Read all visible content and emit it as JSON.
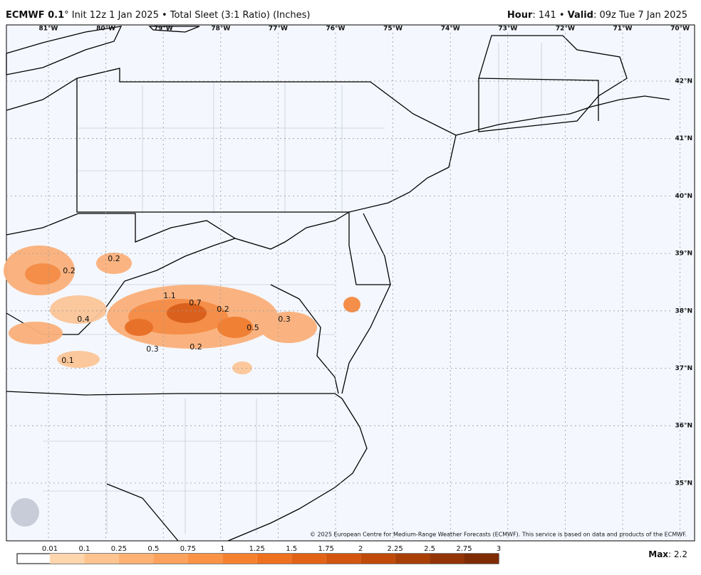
{
  "header": {
    "model": "ECMWF 0.1",
    "description": "° Init 12z 1 Jan 2025 • Total Sleet (3:1 Ratio) (Inches)",
    "hour_label": "Hour",
    "hour_value": ": 141 • ",
    "valid_label": "Valid",
    "valid_value": ": 09z Tue 7 Jan 2025"
  },
  "map": {
    "longitudes": [
      "81°W",
      "80°W",
      "79°W",
      "78°W",
      "77°W",
      "76°W",
      "75°W",
      "74°W",
      "73°W",
      "72°W",
      "71°W",
      "70°W"
    ],
    "latitudes": [
      "42°N",
      "41°N",
      "40°N",
      "39°N",
      "38°N",
      "37°N",
      "36°N",
      "35°N"
    ],
    "labels": [
      0.2,
      0.2,
      1.1,
      0.7,
      0.2,
      0.4,
      0.3,
      0.5,
      0.3,
      0.2,
      0.1
    ],
    "copyright": "© 2025 European Centre for Medium-Range Weather Forecasts (ECMWF). This service is based on data and products of the ECMWF."
  },
  "colorbar": {
    "ticks": [
      0.01,
      0.1,
      0.25,
      0.5,
      0.75,
      1,
      1.25,
      1.5,
      1.75,
      2,
      2.25,
      2.5,
      2.75,
      3
    ],
    "colors": [
      "#fdd6ae",
      "#fdc48f",
      "#fdb274",
      "#fda25c",
      "#fb9346",
      "#f6822f",
      "#ee7120",
      "#e26316",
      "#d2560f",
      "#c04a0a",
      "#a83f07",
      "#923405",
      "#7f2b04"
    ]
  },
  "footer": {
    "max_label": "Max",
    "max_value": ": 2.2"
  }
}
